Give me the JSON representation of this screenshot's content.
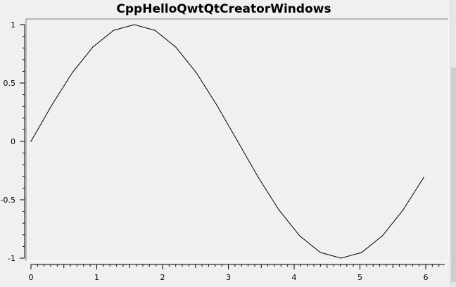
{
  "window": {
    "title": "CppHelloQwtQtCreatorWindows"
  },
  "chart_data": {
    "type": "line",
    "title": "CppHelloQwtQtCreatorWindows",
    "xlabel": "",
    "ylabel": "",
    "xlim": [
      0,
      6.4
    ],
    "ylim": [
      -1,
      1
    ],
    "x_ticks": [
      "0",
      "1",
      "2",
      "3",
      "4",
      "5",
      "6"
    ],
    "y_ticks": [
      "1",
      "0.5",
      "0",
      "-0.5",
      "-1"
    ],
    "grid": false,
    "series": [
      {
        "color": "#000000",
        "x": [
          0,
          0.314,
          0.628,
          0.942,
          1.257,
          1.571,
          1.885,
          2.199,
          2.513,
          2.827,
          3.142,
          3.456,
          3.77,
          4.084,
          4.398,
          4.712,
          5.027,
          5.341,
          5.655,
          5.969
        ],
        "y": [
          0,
          0.309,
          0.588,
          0.809,
          0.951,
          1.0,
          0.951,
          0.809,
          0.588,
          0.309,
          0.0,
          -0.309,
          -0.588,
          -0.809,
          -0.951,
          -1.0,
          -0.951,
          -0.809,
          -0.588,
          -0.309
        ]
      }
    ]
  }
}
